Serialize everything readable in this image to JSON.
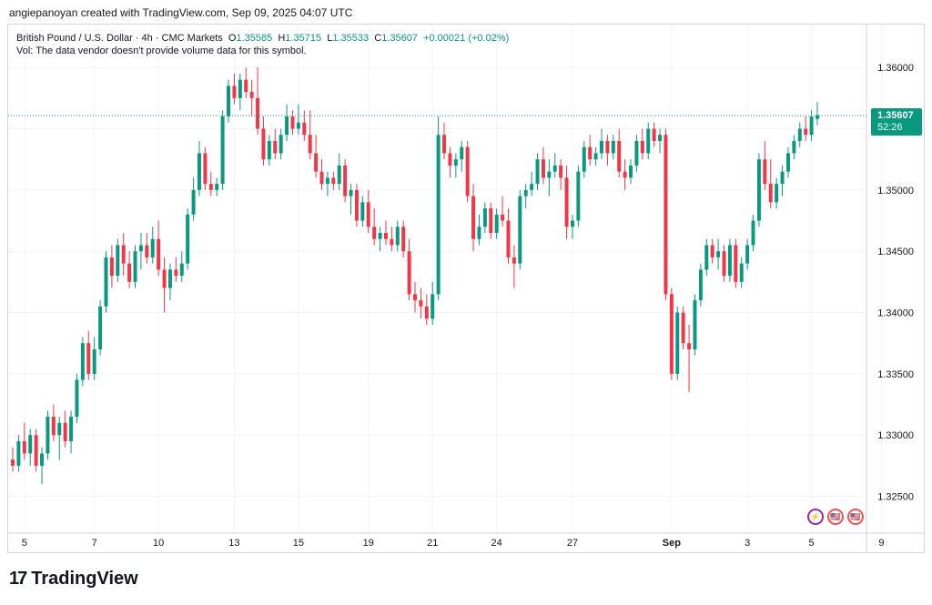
{
  "header": {
    "credit": "angiepanoyan created with TradingView.com, Sep 09, 2025 04:07 UTC"
  },
  "legend": {
    "symbol": "British Pound / U.S. Dollar · 4h · CMC Markets",
    "o_label": "O",
    "o": "1.35585",
    "h_label": "H",
    "h": "1.35715",
    "l_label": "L",
    "l": "1.35533",
    "c_label": "C",
    "c": "1.35607",
    "change": "+0.00021 (+0.02%)",
    "vol": "Vol: The data vendor doesn't provide volume data for this symbol."
  },
  "badge": {
    "price": "1.35607",
    "countdown": "52:26"
  },
  "logo": {
    "mark": "17",
    "text": "TradingView"
  },
  "events": [
    {
      "icon": "dividend-icon",
      "glyph": "⚡"
    },
    {
      "icon": "us-flag-icon",
      "glyph": "🇺🇸"
    },
    {
      "icon": "us-flag-icon",
      "glyph": "🇺🇸"
    }
  ],
  "colors": {
    "up": "#089981",
    "down": "#f23645",
    "grid": "#f0f3fa",
    "axis_text": "#131722"
  },
  "chart_data": {
    "type": "candlestick",
    "title": "British Pound / U.S. Dollar · 4h · CMC Markets",
    "ylim": [
      1.322,
      1.3635
    ],
    "y_ticks": [
      "1.32500",
      "1.33000",
      "1.33500",
      "1.34000",
      "1.34500",
      "1.35000",
      "1.35500",
      "1.36000"
    ],
    "x_ticks": [
      {
        "label": "5",
        "index": 2
      },
      {
        "label": "7",
        "index": 14
      },
      {
        "label": "10",
        "index": 25
      },
      {
        "label": "13",
        "index": 38
      },
      {
        "label": "15",
        "index": 49
      },
      {
        "label": "19",
        "index": 61
      },
      {
        "label": "21",
        "index": 72
      },
      {
        "label": "24",
        "index": 83
      },
      {
        "label": "27",
        "index": 96
      },
      {
        "label": "Sep",
        "index": 113
      },
      {
        "label": "3",
        "index": 126
      },
      {
        "label": "5",
        "index": 137
      },
      {
        "label": "9",
        "index": 149
      }
    ],
    "last_price": 1.35607,
    "candles": [
      [
        1.328,
        1.329,
        1.327,
        1.3275
      ],
      [
        1.3275,
        1.33,
        1.327,
        1.3295
      ],
      [
        1.3295,
        1.331,
        1.328,
        1.3285
      ],
      [
        1.3285,
        1.3305,
        1.3275,
        1.33
      ],
      [
        1.33,
        1.3305,
        1.327,
        1.3275
      ],
      [
        1.3275,
        1.329,
        1.326,
        1.3285
      ],
      [
        1.3285,
        1.332,
        1.328,
        1.3315
      ],
      [
        1.3315,
        1.3325,
        1.3295,
        1.33
      ],
      [
        1.33,
        1.3315,
        1.328,
        1.331
      ],
      [
        1.331,
        1.332,
        1.329,
        1.3295
      ],
      [
        1.3295,
        1.332,
        1.3285,
        1.3315
      ],
      [
        1.3315,
        1.335,
        1.331,
        1.3345
      ],
      [
        1.3345,
        1.338,
        1.334,
        1.3375
      ],
      [
        1.3375,
        1.3385,
        1.3345,
        1.335
      ],
      [
        1.335,
        1.338,
        1.3345,
        1.337
      ],
      [
        1.337,
        1.341,
        1.3365,
        1.3405
      ],
      [
        1.3405,
        1.345,
        1.34,
        1.3445
      ],
      [
        1.3445,
        1.3455,
        1.342,
        1.343
      ],
      [
        1.343,
        1.346,
        1.3425,
        1.3455
      ],
      [
        1.3455,
        1.3465,
        1.343,
        1.344
      ],
      [
        1.344,
        1.345,
        1.342,
        1.3425
      ],
      [
        1.3425,
        1.3455,
        1.342,
        1.345
      ],
      [
        1.345,
        1.3465,
        1.3435,
        1.3455
      ],
      [
        1.3455,
        1.3465,
        1.344,
        1.3445
      ],
      [
        1.3445,
        1.347,
        1.344,
        1.346
      ],
      [
        1.346,
        1.3475,
        1.343,
        1.3435
      ],
      [
        1.3435,
        1.3445,
        1.34,
        1.342
      ],
      [
        1.342,
        1.344,
        1.341,
        1.3435
      ],
      [
        1.3435,
        1.3445,
        1.3425,
        1.343
      ],
      [
        1.343,
        1.345,
        1.3425,
        1.344
      ],
      [
        1.344,
        1.3485,
        1.3435,
        1.348
      ],
      [
        1.348,
        1.351,
        1.3475,
        1.35
      ],
      [
        1.35,
        1.354,
        1.3495,
        1.353
      ],
      [
        1.353,
        1.3535,
        1.35,
        1.3505
      ],
      [
        1.3505,
        1.3515,
        1.3495,
        1.35
      ],
      [
        1.35,
        1.351,
        1.3495,
        1.3505
      ],
      [
        1.3505,
        1.3565,
        1.35,
        1.356
      ],
      [
        1.356,
        1.359,
        1.3555,
        1.3585
      ],
      [
        1.3585,
        1.3595,
        1.357,
        1.3575
      ],
      [
        1.3575,
        1.3595,
        1.3565,
        1.359
      ],
      [
        1.359,
        1.36,
        1.3575,
        1.358
      ],
      [
        1.358,
        1.359,
        1.356,
        1.3575
      ],
      [
        1.3575,
        1.36,
        1.3545,
        1.355
      ],
      [
        1.355,
        1.356,
        1.352,
        1.3525
      ],
      [
        1.3525,
        1.3545,
        1.352,
        1.354
      ],
      [
        1.354,
        1.355,
        1.3525,
        1.353
      ],
      [
        1.353,
        1.355,
        1.3525,
        1.3545
      ],
      [
        1.3545,
        1.357,
        1.354,
        1.356
      ],
      [
        1.356,
        1.3565,
        1.3545,
        1.355
      ],
      [
        1.355,
        1.357,
        1.3545,
        1.3555
      ],
      [
        1.3555,
        1.3565,
        1.354,
        1.3545
      ],
      [
        1.3545,
        1.3565,
        1.3525,
        1.353
      ],
      [
        1.353,
        1.3545,
        1.351,
        1.3515
      ],
      [
        1.3515,
        1.3525,
        1.35,
        1.3505
      ],
      [
        1.3505,
        1.3515,
        1.3495,
        1.351
      ],
      [
        1.351,
        1.3515,
        1.35,
        1.3505
      ],
      [
        1.3505,
        1.353,
        1.35,
        1.352
      ],
      [
        1.352,
        1.3525,
        1.349,
        1.3495
      ],
      [
        1.3495,
        1.3505,
        1.348,
        1.35
      ],
      [
        1.35,
        1.3505,
        1.347,
        1.3475
      ],
      [
        1.3475,
        1.3495,
        1.347,
        1.349
      ],
      [
        1.349,
        1.35,
        1.3465,
        1.347
      ],
      [
        1.347,
        1.3485,
        1.3455,
        1.346
      ],
      [
        1.346,
        1.347,
        1.345,
        1.3465
      ],
      [
        1.3465,
        1.3475,
        1.3455,
        1.346
      ],
      [
        1.346,
        1.347,
        1.345,
        1.3455
      ],
      [
        1.3455,
        1.3475,
        1.345,
        1.347
      ],
      [
        1.347,
        1.3475,
        1.3445,
        1.345
      ],
      [
        1.345,
        1.346,
        1.341,
        1.3415
      ],
      [
        1.3415,
        1.3425,
        1.34,
        1.341
      ],
      [
        1.341,
        1.342,
        1.3395,
        1.3405
      ],
      [
        1.3405,
        1.3415,
        1.339,
        1.3395
      ],
      [
        1.3395,
        1.3425,
        1.339,
        1.3415
      ],
      [
        1.3415,
        1.356,
        1.341,
        1.3545
      ],
      [
        1.3545,
        1.3555,
        1.3525,
        1.353
      ],
      [
        1.353,
        1.3535,
        1.351,
        1.352
      ],
      [
        1.352,
        1.353,
        1.351,
        1.3525
      ],
      [
        1.3525,
        1.354,
        1.3515,
        1.3535
      ],
      [
        1.3535,
        1.354,
        1.349,
        1.3495
      ],
      [
        1.3495,
        1.3505,
        1.345,
        1.346
      ],
      [
        1.346,
        1.348,
        1.3455,
        1.347
      ],
      [
        1.347,
        1.349,
        1.3465,
        1.3485
      ],
      [
        1.3485,
        1.349,
        1.346,
        1.3465
      ],
      [
        1.3465,
        1.3485,
        1.346,
        1.348
      ],
      [
        1.348,
        1.3495,
        1.347,
        1.3475
      ],
      [
        1.3475,
        1.3485,
        1.344,
        1.3445
      ],
      [
        1.3445,
        1.3455,
        1.342,
        1.344
      ],
      [
        1.344,
        1.35,
        1.3435,
        1.3495
      ],
      [
        1.3495,
        1.3505,
        1.3485,
        1.35
      ],
      [
        1.35,
        1.3515,
        1.3495,
        1.3505
      ],
      [
        1.3505,
        1.353,
        1.35,
        1.3525
      ],
      [
        1.3525,
        1.3535,
        1.3505,
        1.351
      ],
      [
        1.351,
        1.3525,
        1.3495,
        1.3515
      ],
      [
        1.3515,
        1.353,
        1.351,
        1.352
      ],
      [
        1.352,
        1.3525,
        1.35,
        1.351
      ],
      [
        1.351,
        1.352,
        1.346,
        1.347
      ],
      [
        1.347,
        1.348,
        1.346,
        1.3475
      ],
      [
        1.3475,
        1.352,
        1.347,
        1.3515
      ],
      [
        1.3515,
        1.354,
        1.351,
        1.3535
      ],
      [
        1.3535,
        1.3545,
        1.352,
        1.3525
      ],
      [
        1.3525,
        1.3535,
        1.352,
        1.353
      ],
      [
        1.353,
        1.355,
        1.3525,
        1.354
      ],
      [
        1.354,
        1.3545,
        1.352,
        1.353
      ],
      [
        1.353,
        1.3545,
        1.3525,
        1.354
      ],
      [
        1.354,
        1.355,
        1.351,
        1.3515
      ],
      [
        1.3515,
        1.3525,
        1.35,
        1.351
      ],
      [
        1.351,
        1.3525,
        1.3505,
        1.352
      ],
      [
        1.352,
        1.3545,
        1.3515,
        1.354
      ],
      [
        1.354,
        1.355,
        1.3525,
        1.353
      ],
      [
        1.353,
        1.3555,
        1.3525,
        1.355
      ],
      [
        1.355,
        1.3555,
        1.3535,
        1.354
      ],
      [
        1.354,
        1.355,
        1.353,
        1.3545
      ],
      [
        1.3545,
        1.355,
        1.341,
        1.3415
      ],
      [
        1.3415,
        1.342,
        1.3345,
        1.335
      ],
      [
        1.335,
        1.3405,
        1.3345,
        1.34
      ],
      [
        1.34,
        1.3405,
        1.337,
        1.3375
      ],
      [
        1.3375,
        1.339,
        1.3335,
        1.337
      ],
      [
        1.337,
        1.3415,
        1.3365,
        1.341
      ],
      [
        1.341,
        1.344,
        1.3405,
        1.3435
      ],
      [
        1.3435,
        1.346,
        1.343,
        1.3455
      ],
      [
        1.3455,
        1.346,
        1.344,
        1.3445
      ],
      [
        1.3445,
        1.346,
        1.3435,
        1.345
      ],
      [
        1.345,
        1.3455,
        1.3425,
        1.343
      ],
      [
        1.343,
        1.346,
        1.3425,
        1.3455
      ],
      [
        1.3455,
        1.346,
        1.342,
        1.3425
      ],
      [
        1.3425,
        1.3445,
        1.342,
        1.344
      ],
      [
        1.344,
        1.346,
        1.3435,
        1.3455
      ],
      [
        1.3455,
        1.348,
        1.345,
        1.3475
      ],
      [
        1.3475,
        1.353,
        1.347,
        1.3525
      ],
      [
        1.3525,
        1.354,
        1.35,
        1.3505
      ],
      [
        1.3505,
        1.3525,
        1.3485,
        1.349
      ],
      [
        1.349,
        1.351,
        1.3485,
        1.3505
      ],
      [
        1.3505,
        1.352,
        1.3495,
        1.3515
      ],
      [
        1.3515,
        1.3535,
        1.351,
        1.353
      ],
      [
        1.353,
        1.3545,
        1.3525,
        1.354
      ],
      [
        1.354,
        1.3555,
        1.3535,
        1.355
      ],
      [
        1.355,
        1.356,
        1.354,
        1.3545
      ],
      [
        1.3545,
        1.3565,
        1.354,
        1.356
      ],
      [
        1.3558,
        1.3572,
        1.3553,
        1.3561
      ]
    ]
  }
}
